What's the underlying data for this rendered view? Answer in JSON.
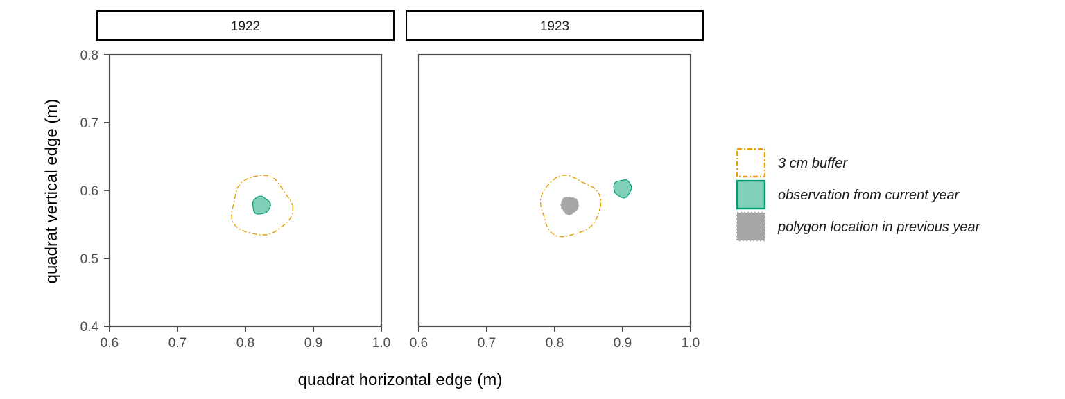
{
  "chart_data": {
    "type": "map",
    "xlabel": "quadrat horizontal edge (m)",
    "ylabel": "quadrat vertical edge (m)",
    "xlim": [
      0.6,
      1.0
    ],
    "ylim": [
      0.4,
      0.8
    ],
    "x_ticks": [
      "0.6",
      "0.7",
      "0.8",
      "0.9",
      "1.0"
    ],
    "y_ticks": [
      "0.4",
      "0.5",
      "0.6",
      "0.7",
      "0.8"
    ],
    "grid": false,
    "legend_position": "right",
    "legend": [
      {
        "key": "buffer",
        "label": "3 cm buffer",
        "color": "#E69F00",
        "fill": "#ffffff",
        "line": "dashdot"
      },
      {
        "key": "current",
        "label": "observation from current year",
        "color": "#009E73",
        "fill": "#7FCFB9",
        "line": "solid"
      },
      {
        "key": "previous",
        "label": "polygon location in previous year",
        "color": "#AAAAAA",
        "fill": "#A6A6A6",
        "line": "dotted"
      }
    ],
    "panels": [
      {
        "label": "1922",
        "shapes": [
          {
            "key": "buffer",
            "center": [
              0.823,
              0.577
            ],
            "radius": 0.044
          },
          {
            "key": "current",
            "center": [
              0.823,
              0.578
            ],
            "radius": 0.013
          }
        ]
      },
      {
        "label": "1923",
        "shapes": [
          {
            "key": "buffer",
            "center": [
              0.822,
              0.577
            ],
            "radius": 0.044
          },
          {
            "key": "previous",
            "center": [
              0.822,
              0.578
            ],
            "radius": 0.013
          },
          {
            "key": "current",
            "center": [
              0.9,
              0.603
            ],
            "radius": 0.013
          }
        ]
      }
    ]
  }
}
